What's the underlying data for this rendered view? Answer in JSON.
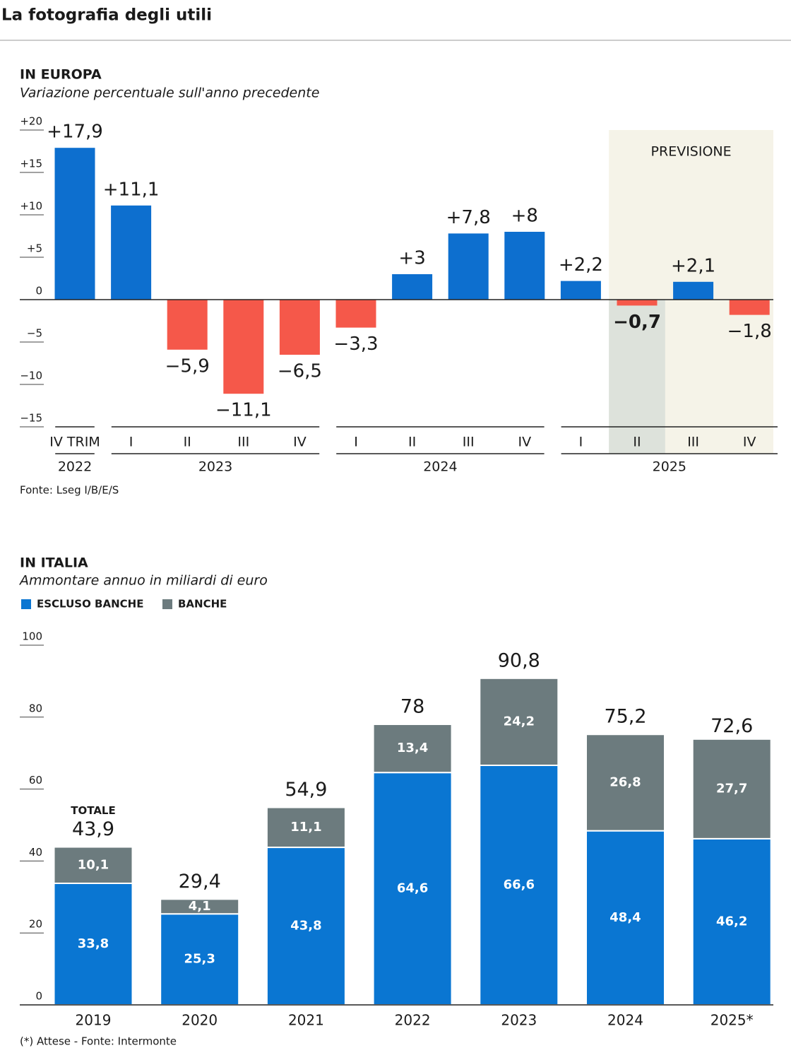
{
  "title": "La fotografia degli utili",
  "chart_data": [
    {
      "type": "bar",
      "title": "IN EUROPA",
      "subtitle": "Variazione percentuale sull'anno precedente",
      "categories": [
        "IV TRIM",
        "I",
        "II",
        "III",
        "IV",
        "I",
        "II",
        "III",
        "IV",
        "I",
        "II",
        "III",
        "IV"
      ],
      "groups": [
        {
          "label": "2022",
          "size": 1
        },
        {
          "label": "2023",
          "size": 4
        },
        {
          "label": "2024",
          "size": 4
        },
        {
          "label": "2025",
          "size": 4
        }
      ],
      "values": [
        17.9,
        11.1,
        -5.9,
        -11.1,
        -6.5,
        -3.3,
        3,
        7.8,
        8,
        2.2,
        -0.7,
        2.1,
        -1.8
      ],
      "value_labels": [
        "+17,9",
        "+11,1",
        "−5,9",
        "−11,1",
        "−6,5",
        "−3,3",
        "+3",
        "+7,8",
        "+8",
        "+2,2",
        "−0,7",
        "+2,1",
        "−1,8"
      ],
      "colors": {
        "positive": "#0d6fcf",
        "negative": "#f5584a"
      },
      "ylim": [
        -15,
        20
      ],
      "yticks": [
        {
          "value": 20,
          "label": "+20"
        },
        {
          "value": 15,
          "label": "+15"
        },
        {
          "value": 10,
          "label": "+10"
        },
        {
          "value": 5,
          "label": "+5"
        },
        0,
        {
          "value": -5,
          "label": "−5"
        },
        {
          "value": -10,
          "label": "−10"
        },
        {
          "value": -15,
          "label": "−15"
        }
      ],
      "forecast": {
        "label": "PREVISIONE",
        "start": 10
      },
      "highlight": 10,
      "source": "Fonte: Lseg I/B/E/S"
    },
    {
      "type": "stacked_bar",
      "title": "IN ITALIA",
      "subtitle": "Ammontare annuo in miliardi di euro",
      "categories": [
        "2019",
        "2020",
        "2021",
        "2022",
        "2023",
        "2024",
        "2025*"
      ],
      "series": [
        {
          "name": "ESCLUSO BANCHE",
          "color": "#0a76d2",
          "values": [
            33.8,
            25.3,
            43.8,
            64.6,
            66.6,
            48.4,
            46.2
          ],
          "value_labels": [
            "33,8",
            "25,3",
            "43,8",
            "64,6",
            "66,6",
            "48,4",
            "46,2"
          ]
        },
        {
          "name": "BANCHE",
          "color": "#6c7b7e",
          "values": [
            10.1,
            4.1,
            11.1,
            13.4,
            24.2,
            26.8,
            27.7
          ],
          "value_labels": [
            "10,1",
            "4,1",
            "11,1",
            "13,4",
            "24,2",
            "26,8",
            "27,7"
          ]
        }
      ],
      "totals": {
        "name": "TOTALE",
        "values": [
          43.9,
          29.4,
          54.9,
          78,
          90.8,
          75.2,
          72.6
        ],
        "value_labels": [
          "43,9",
          "29,4",
          "54,9",
          "78",
          "90,8",
          "75,2",
          "72,6"
        ]
      },
      "ylim": [
        0,
        100
      ],
      "yticks": [
        0,
        20,
        40,
        60,
        80,
        100
      ],
      "source": "(*) Attese - Fonte: Intermonte"
    }
  ]
}
